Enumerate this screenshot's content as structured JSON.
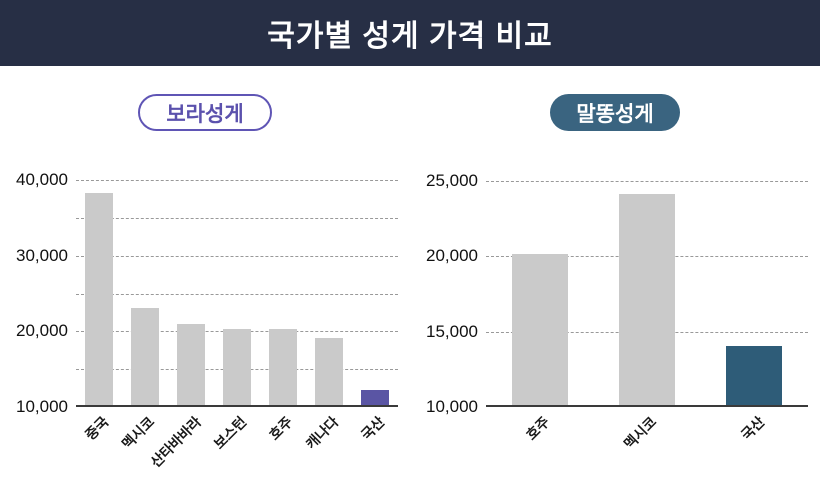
{
  "header": {
    "title": "국가별 성게 가격 비교"
  },
  "theme": {
    "header_bg": "#272f45",
    "header_text": "#ffffff",
    "purple_accent": "#5b51ad",
    "purple_bar": "#5a55a4",
    "slate_pill_bg": "#3a6480",
    "slate_bar": "#2e5c78",
    "bar_gray": "#cacaca",
    "gridline": "#999999"
  },
  "chart_data": [
    {
      "type": "bar",
      "title": "보라성게",
      "categories": [
        "중국",
        "멕시코",
        "산타바바라",
        "보스턴",
        "호주",
        "캐나다",
        "국산"
      ],
      "values": [
        38000,
        22800,
        20700,
        20000,
        20000,
        18900,
        12000
      ],
      "xlabel": "",
      "ylabel": "",
      "ylim": [
        10000,
        41500
      ],
      "yticks": [
        10000,
        20000,
        30000,
        40000
      ],
      "gridlines": [
        15000,
        20000,
        25000,
        30000,
        35000,
        40000
      ],
      "bar_color_default": "#cacaca",
      "highlight": {
        "index": 6,
        "category": "국산",
        "color": "#5a55a4"
      },
      "grid": "dashed-horizontal",
      "legend": "none"
    },
    {
      "type": "bar",
      "title": "말똥성게",
      "categories": [
        "호주",
        "멕시코",
        "국산"
      ],
      "values": [
        20000,
        24000,
        13900
      ],
      "xlabel": "",
      "ylabel": "",
      "ylim": [
        10000,
        25800
      ],
      "yticks": [
        10000,
        15000,
        20000,
        25000
      ],
      "gridlines": [
        15000,
        20000,
        25000
      ],
      "bar_color_default": "#cacaca",
      "highlight": {
        "index": 2,
        "category": "국산",
        "color": "#2e5c78"
      },
      "grid": "dashed-horizontal",
      "legend": "none"
    }
  ]
}
